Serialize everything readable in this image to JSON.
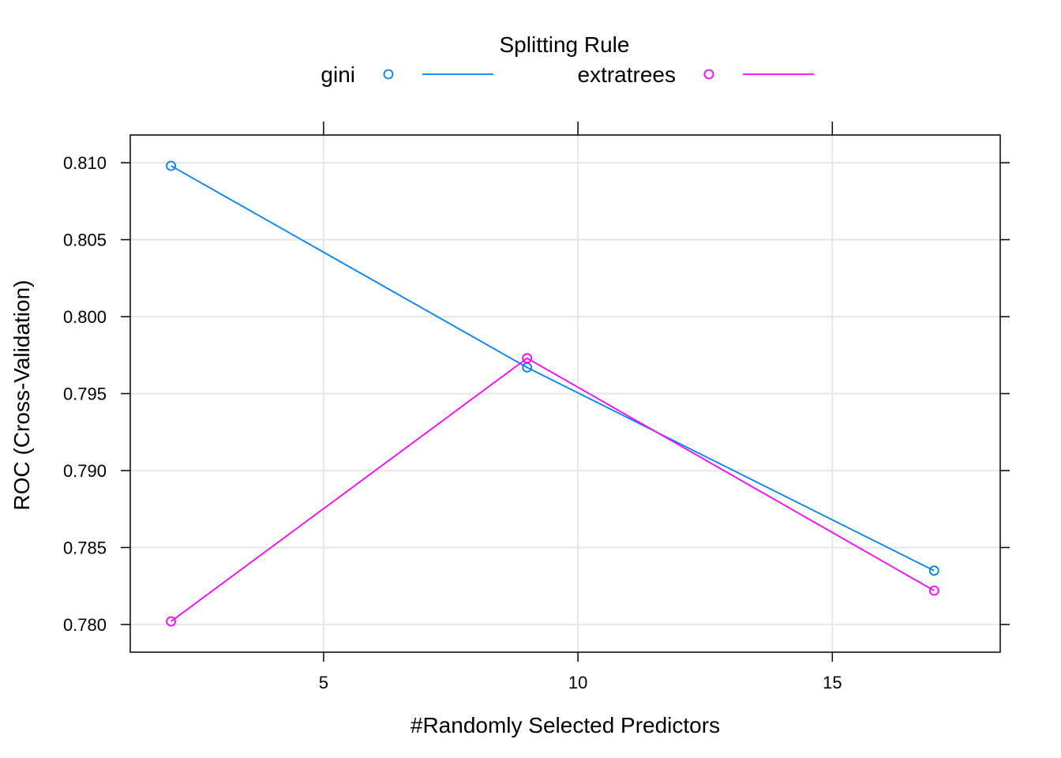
{
  "chart_data": {
    "type": "line",
    "title": "",
    "legend": {
      "title": "Splitting Rule",
      "placement": "top"
    },
    "xlabel": "#Randomly Selected Predictors",
    "ylabel": "ROC (Cross-Validation)",
    "xlim": [
      1.2,
      18.3
    ],
    "ylim": [
      0.7782,
      0.8118
    ],
    "xticks": [
      5,
      10,
      15
    ],
    "xtick_labels": [
      "5",
      "10",
      "15"
    ],
    "yticks": [
      0.78,
      0.785,
      0.79,
      0.795,
      0.8,
      0.805,
      0.81
    ],
    "ytick_labels": [
      "0.780",
      "0.785",
      "0.790",
      "0.795",
      "0.800",
      "0.805",
      "0.810"
    ],
    "grid": true,
    "series": [
      {
        "name": "gini",
        "color": "#0080ff",
        "x": [
          2,
          9,
          17
        ],
        "y": [
          0.8098,
          0.7967,
          0.7835
        ]
      },
      {
        "name": "extratrees",
        "color": "#ff00ff",
        "x": [
          2,
          9,
          17
        ],
        "y": [
          0.7802,
          0.7973,
          0.7822
        ]
      }
    ]
  }
}
